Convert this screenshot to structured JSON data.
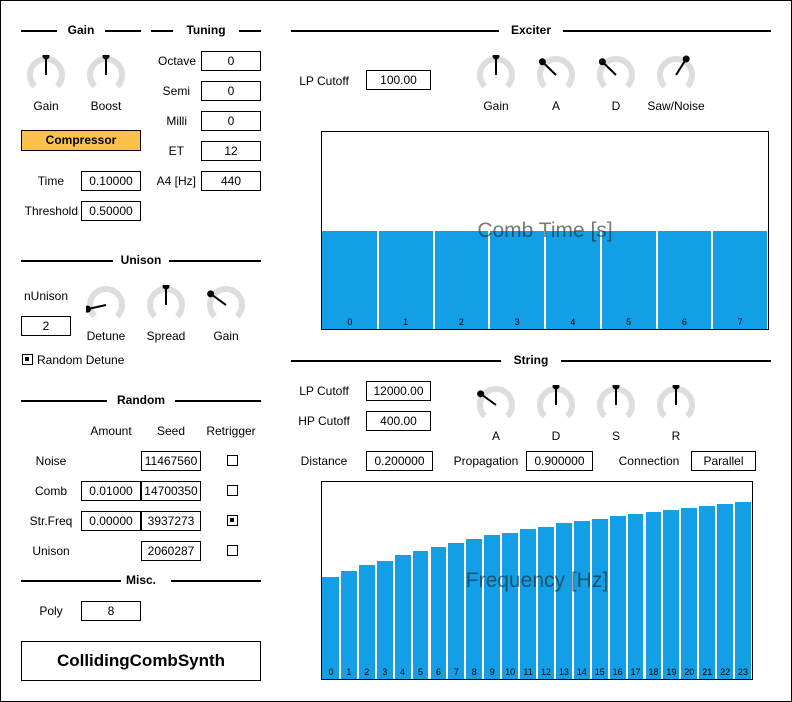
{
  "colors": {
    "accent": "#fcc14a",
    "bar": "#129fe6",
    "knob_track": "#dddddd"
  },
  "gain": {
    "title": "Gain",
    "knob_gain": "Gain",
    "knob_boost": "Boost"
  },
  "compressor": {
    "label": "Compressor",
    "time_label": "Time",
    "time_value": "0.10000",
    "threshold_label": "Threshold",
    "threshold_value": "0.50000"
  },
  "tuning": {
    "title": "Tuning",
    "octave_label": "Octave",
    "octave_value": "0",
    "semi_label": "Semi",
    "semi_value": "0",
    "milli_label": "Milli",
    "milli_value": "0",
    "et_label": "ET",
    "et_value": "12",
    "a4_label": "A4 [Hz]",
    "a4_value": "440"
  },
  "unison": {
    "title": "Unison",
    "n_label": "nUnison",
    "n_value": "2",
    "knob_detune": "Detune",
    "knob_spread": "Spread",
    "knob_gain": "Gain",
    "random_detune_label": "Random Detune",
    "random_detune_checked": true
  },
  "random": {
    "title": "Random",
    "col_amount": "Amount",
    "col_seed": "Seed",
    "col_retrigger": "Retrigger",
    "rows": [
      {
        "label": "Noise",
        "amount": "",
        "seed": "11467560",
        "retrigger": false
      },
      {
        "label": "Comb",
        "amount": "0.01000",
        "seed": "14700350",
        "retrigger": false
      },
      {
        "label": "Str.Freq",
        "amount": "0.00000",
        "seed": "3937273",
        "retrigger": true
      },
      {
        "label": "Unison",
        "amount": "",
        "seed": "2060287",
        "retrigger": false
      }
    ]
  },
  "misc": {
    "title": "Misc.",
    "poly_label": "Poly",
    "poly_value": "8"
  },
  "brand": "CollidingCombSynth",
  "exciter": {
    "title": "Exciter",
    "lp_cutoff_label": "LP Cutoff",
    "lp_cutoff_value": "100.00",
    "knob_gain": "Gain",
    "knob_a": "A",
    "knob_d": "D",
    "knob_saw": "Saw/Noise",
    "comb_time": {
      "title": "Comb Time [s]",
      "indices": [
        "0",
        "1",
        "2",
        "3",
        "4",
        "5",
        "6",
        "7"
      ],
      "values": [
        0.5,
        0.5,
        0.5,
        0.5,
        0.5,
        0.5,
        0.5,
        0.5
      ]
    }
  },
  "string": {
    "title": "String",
    "lp_cutoff_label": "LP Cutoff",
    "lp_cutoff_value": "12000.00",
    "hp_cutoff_label": "HP Cutoff",
    "hp_cutoff_value": "400.00",
    "knob_a": "A",
    "knob_d": "D",
    "knob_s": "S",
    "knob_r": "R",
    "distance_label": "Distance",
    "distance_value": "0.200000",
    "propagation_label": "Propagation",
    "propagation_value": "0.900000",
    "connection_label": "Connection",
    "connection_value": "Parallel",
    "frequency": {
      "title": "Frequency [Hz]",
      "indices": [
        "0",
        "1",
        "2",
        "3",
        "4",
        "5",
        "6",
        "7",
        "8",
        "9",
        "10",
        "11",
        "12",
        "13",
        "14",
        "15",
        "16",
        "17",
        "18",
        "19",
        "20",
        "21",
        "22",
        "23"
      ],
      "values": [
        0.52,
        0.55,
        0.58,
        0.6,
        0.63,
        0.65,
        0.67,
        0.69,
        0.71,
        0.73,
        0.74,
        0.76,
        0.77,
        0.79,
        0.8,
        0.81,
        0.83,
        0.84,
        0.85,
        0.86,
        0.87,
        0.88,
        0.89,
        0.9
      ]
    }
  },
  "knobs": {
    "gain_gain": 0.5,
    "gain_boost": 0.5,
    "unison_detune": 0.12,
    "unison_spread": 0.5,
    "unison_gain": 0.3,
    "exciter_gain": 0.5,
    "exciter_a": 0.33,
    "exciter_d": 0.33,
    "exciter_saw": 0.62,
    "string_a": 0.3,
    "string_d": 0.5,
    "string_s": 0.5,
    "string_r": 0.5
  }
}
